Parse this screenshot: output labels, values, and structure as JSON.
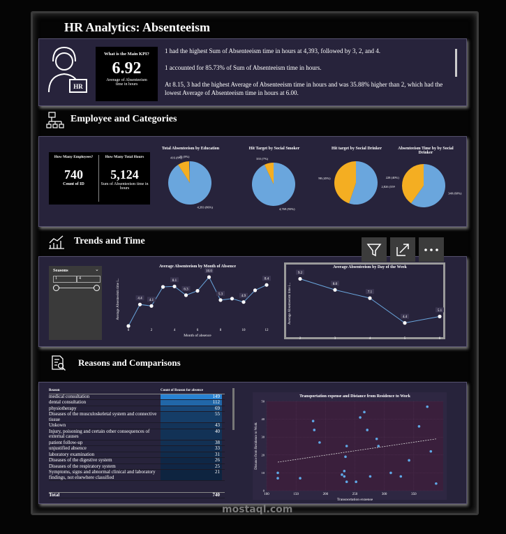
{
  "header": {
    "title": "HR Analytics: Absenteeism"
  },
  "kpi": {
    "question": "What is the Main KPI?",
    "value": "6.92",
    "caption": "Average of Absenteeism time in hours"
  },
  "insights": [
    "1 had the highest Sum of Absenteeism time in hours at 4,393, followed by 3, 2, and 4.",
    "1 accounted for 85.73% of Sum of Absenteeism time in hours.",
    "At 8.15, 3 had the highest Average of Absenteeism time in hours and was 35.88% higher than 2, which had the lowest Average of Absenteeism time in hours at 6.00."
  ],
  "sections": [
    "Employee and Categories",
    "Trends and Time",
    "Reasons and Comparisons"
  ],
  "cards": [
    {
      "question": "How Many Employees?",
      "value": "740",
      "caption": "Count of ID"
    },
    {
      "question": "How Many Total Hours",
      "value": "5,124",
      "caption": "Sum of Absenteeism time in hours"
    }
  ],
  "slicer": {
    "title": "Seasons",
    "from": "1",
    "to": "4"
  },
  "table": {
    "headers": [
      "Reason",
      "Count of Reason for absence"
    ],
    "rows": [
      [
        "medical consultation",
        149
      ],
      [
        "dental consultation",
        112
      ],
      [
        "physiotherapy",
        69
      ],
      [
        "Diseases of the musculoskeletal system and connective tissue",
        55
      ],
      [
        "Unkown",
        43
      ],
      [
        "Injury, poisoning and certain other consequences of external causes",
        40
      ],
      [
        "patient follow-up",
        38
      ],
      [
        "unjustified absence",
        33
      ],
      [
        "laboratory examination",
        31
      ],
      [
        "Diseases of the digestive system",
        26
      ],
      [
        "Diseases of the respiratory system",
        25
      ],
      [
        "Symptoms, signs and abnormal clinical and laboratory findings, not elsewhere classified",
        21
      ]
    ],
    "total": [
      "Total",
      740
    ]
  },
  "watermark": "mostaql.com",
  "chart_data": [
    {
      "type": "pie",
      "title": "Total Absenteeism by Education",
      "values": [
        4393,
        416,
        25
      ],
      "value_labels": [
        "4,393 (86%)",
        "416 (8%)",
        "25 (0%)"
      ],
      "colors": [
        "#6aa6dd",
        "#f4ae22",
        "#2d66b0"
      ]
    },
    {
      "type": "pie",
      "title": "Hit Target by Social Smoker",
      "values": [
        4769,
        355
      ],
      "value_labels": [
        "4,769 (93%)",
        "355 (7%)"
      ],
      "colors": [
        "#6aa6dd",
        "#f4ae22"
      ]
    },
    {
      "type": "pie",
      "title": "Hit target by Social Drinker",
      "values": [
        2826,
        2298
      ],
      "value_labels": [
        "2,826 (55%)",
        "2,298 (45%)"
      ],
      "colors": [
        "#6aa6dd",
        "#f4ae22"
      ]
    },
    {
      "type": "pie",
      "title": "Absenteeism Time by by Social Drinker",
      "values": [
        340,
        228
      ],
      "value_labels": [
        "340 (60%)",
        "228 (40%)"
      ],
      "colors": [
        "#6aa6dd",
        "#f4ae22"
      ]
    },
    {
      "type": "line",
      "title": "Average Absenteeism by Month of Absence",
      "x_label": "Month of absence",
      "y_label": "Average Absenteeism time i...",
      "x": [
        0,
        1,
        2,
        3,
        4,
        5,
        6,
        7,
        8,
        9,
        10,
        11,
        12
      ],
      "values": [
        0,
        4.4,
        4.1,
        8.0,
        8.1,
        6.3,
        7.2,
        10.0,
        5.3,
        5.6,
        4.9,
        7.3,
        8.4
      ],
      "value_labels": [
        null,
        "4.4",
        "4.1",
        null,
        "8.1",
        "6.3",
        null,
        "10.0",
        "5.3",
        null,
        "4.9",
        null,
        "8.4"
      ],
      "xlim": [
        0,
        12
      ],
      "xticks": [
        0,
        2,
        4,
        6,
        8,
        10,
        12
      ],
      "ylim": [
        0,
        11
      ],
      "color": "#6aa6dd"
    },
    {
      "type": "line",
      "title": "Average Absenteeism by Day of the Week",
      "x_label": "Day of the week",
      "y_label": "Average Absenteeism time i...",
      "x": [
        2,
        3,
        4,
        5,
        6
      ],
      "values": [
        9.2,
        8.0,
        7.1,
        4.4,
        5.1
      ],
      "value_labels": [
        "9.2",
        "8.0",
        "7.1",
        "4.4",
        "5.1"
      ],
      "xlim": [
        2,
        6
      ],
      "xticks": [
        2,
        3,
        4,
        5,
        6
      ],
      "ylim": [
        3,
        10
      ],
      "color": "#6aa6dd"
    },
    {
      "type": "scatter",
      "title": "Transportation expense and Distance from Residence to Work",
      "x_label": "Transportation expense",
      "y_label": "Distance from Residence to Work",
      "x": [
        119,
        119,
        157,
        179,
        181,
        190,
        236,
        234,
        232,
        228,
        236,
        252,
        259,
        266,
        276,
        287,
        290,
        311,
        328,
        342,
        359,
        373,
        379,
        388,
        271,
        232
      ],
      "values": [
        10,
        7,
        7,
        39,
        34,
        27,
        25,
        19,
        11,
        9,
        5,
        5,
        41,
        44,
        8,
        29,
        25,
        10,
        8,
        17,
        36,
        47,
        22,
        4,
        34,
        8
      ],
      "trendline": {
        "x": [
          119,
          388
        ],
        "values": [
          16,
          29
        ]
      },
      "xlim": [
        100,
        400
      ],
      "xticks": [
        100,
        150,
        200,
        250,
        300,
        350
      ],
      "ylim": [
        0,
        50
      ],
      "yticks": [
        0,
        10,
        20,
        30,
        40,
        50
      ],
      "grid": true,
      "color": "#5fa8e6"
    }
  ]
}
